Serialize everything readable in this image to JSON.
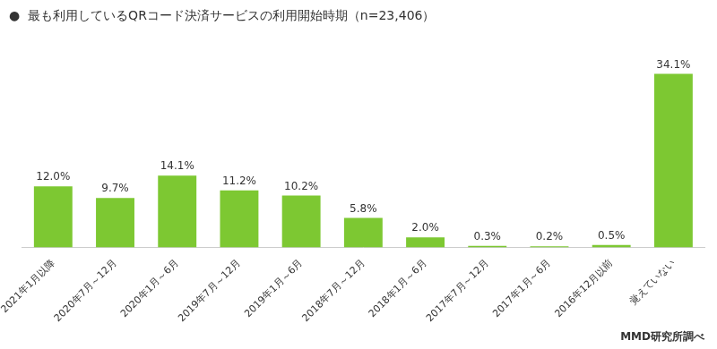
{
  "chart_data": {
    "type": "bar",
    "title": "●  最も利用しているQRコード決済サービスの利用開始時期（n=23,406）",
    "annotations": [
      "MMD研究所調べ"
    ],
    "categories": [
      "2021年1月以降",
      "2020年7月～12月",
      "2020年1月～6月",
      "2019年7月～12月",
      "2019年1月～6月",
      "2018年7月～12月",
      "2018年1月～6月",
      "2017年7月～12月",
      "2017年1月～6月",
      "2016年12月以前",
      "覚えていない"
    ],
    "values": [
      12.0,
      9.7,
      14.1,
      11.2,
      10.2,
      5.8,
      2.0,
      0.3,
      0.2,
      0.5,
      34.1
    ],
    "value_labels": [
      "12.0%",
      "9.7%",
      "14.1%",
      "11.2%",
      "10.2%",
      "5.8%",
      "2.0%",
      "0.3%",
      "0.2%",
      "0.5%",
      "34.1%"
    ],
    "data_labels": true,
    "color": "#7DC832",
    "ylim": [
      0,
      40
    ],
    "tick_labels": "x",
    "grid": false
  }
}
